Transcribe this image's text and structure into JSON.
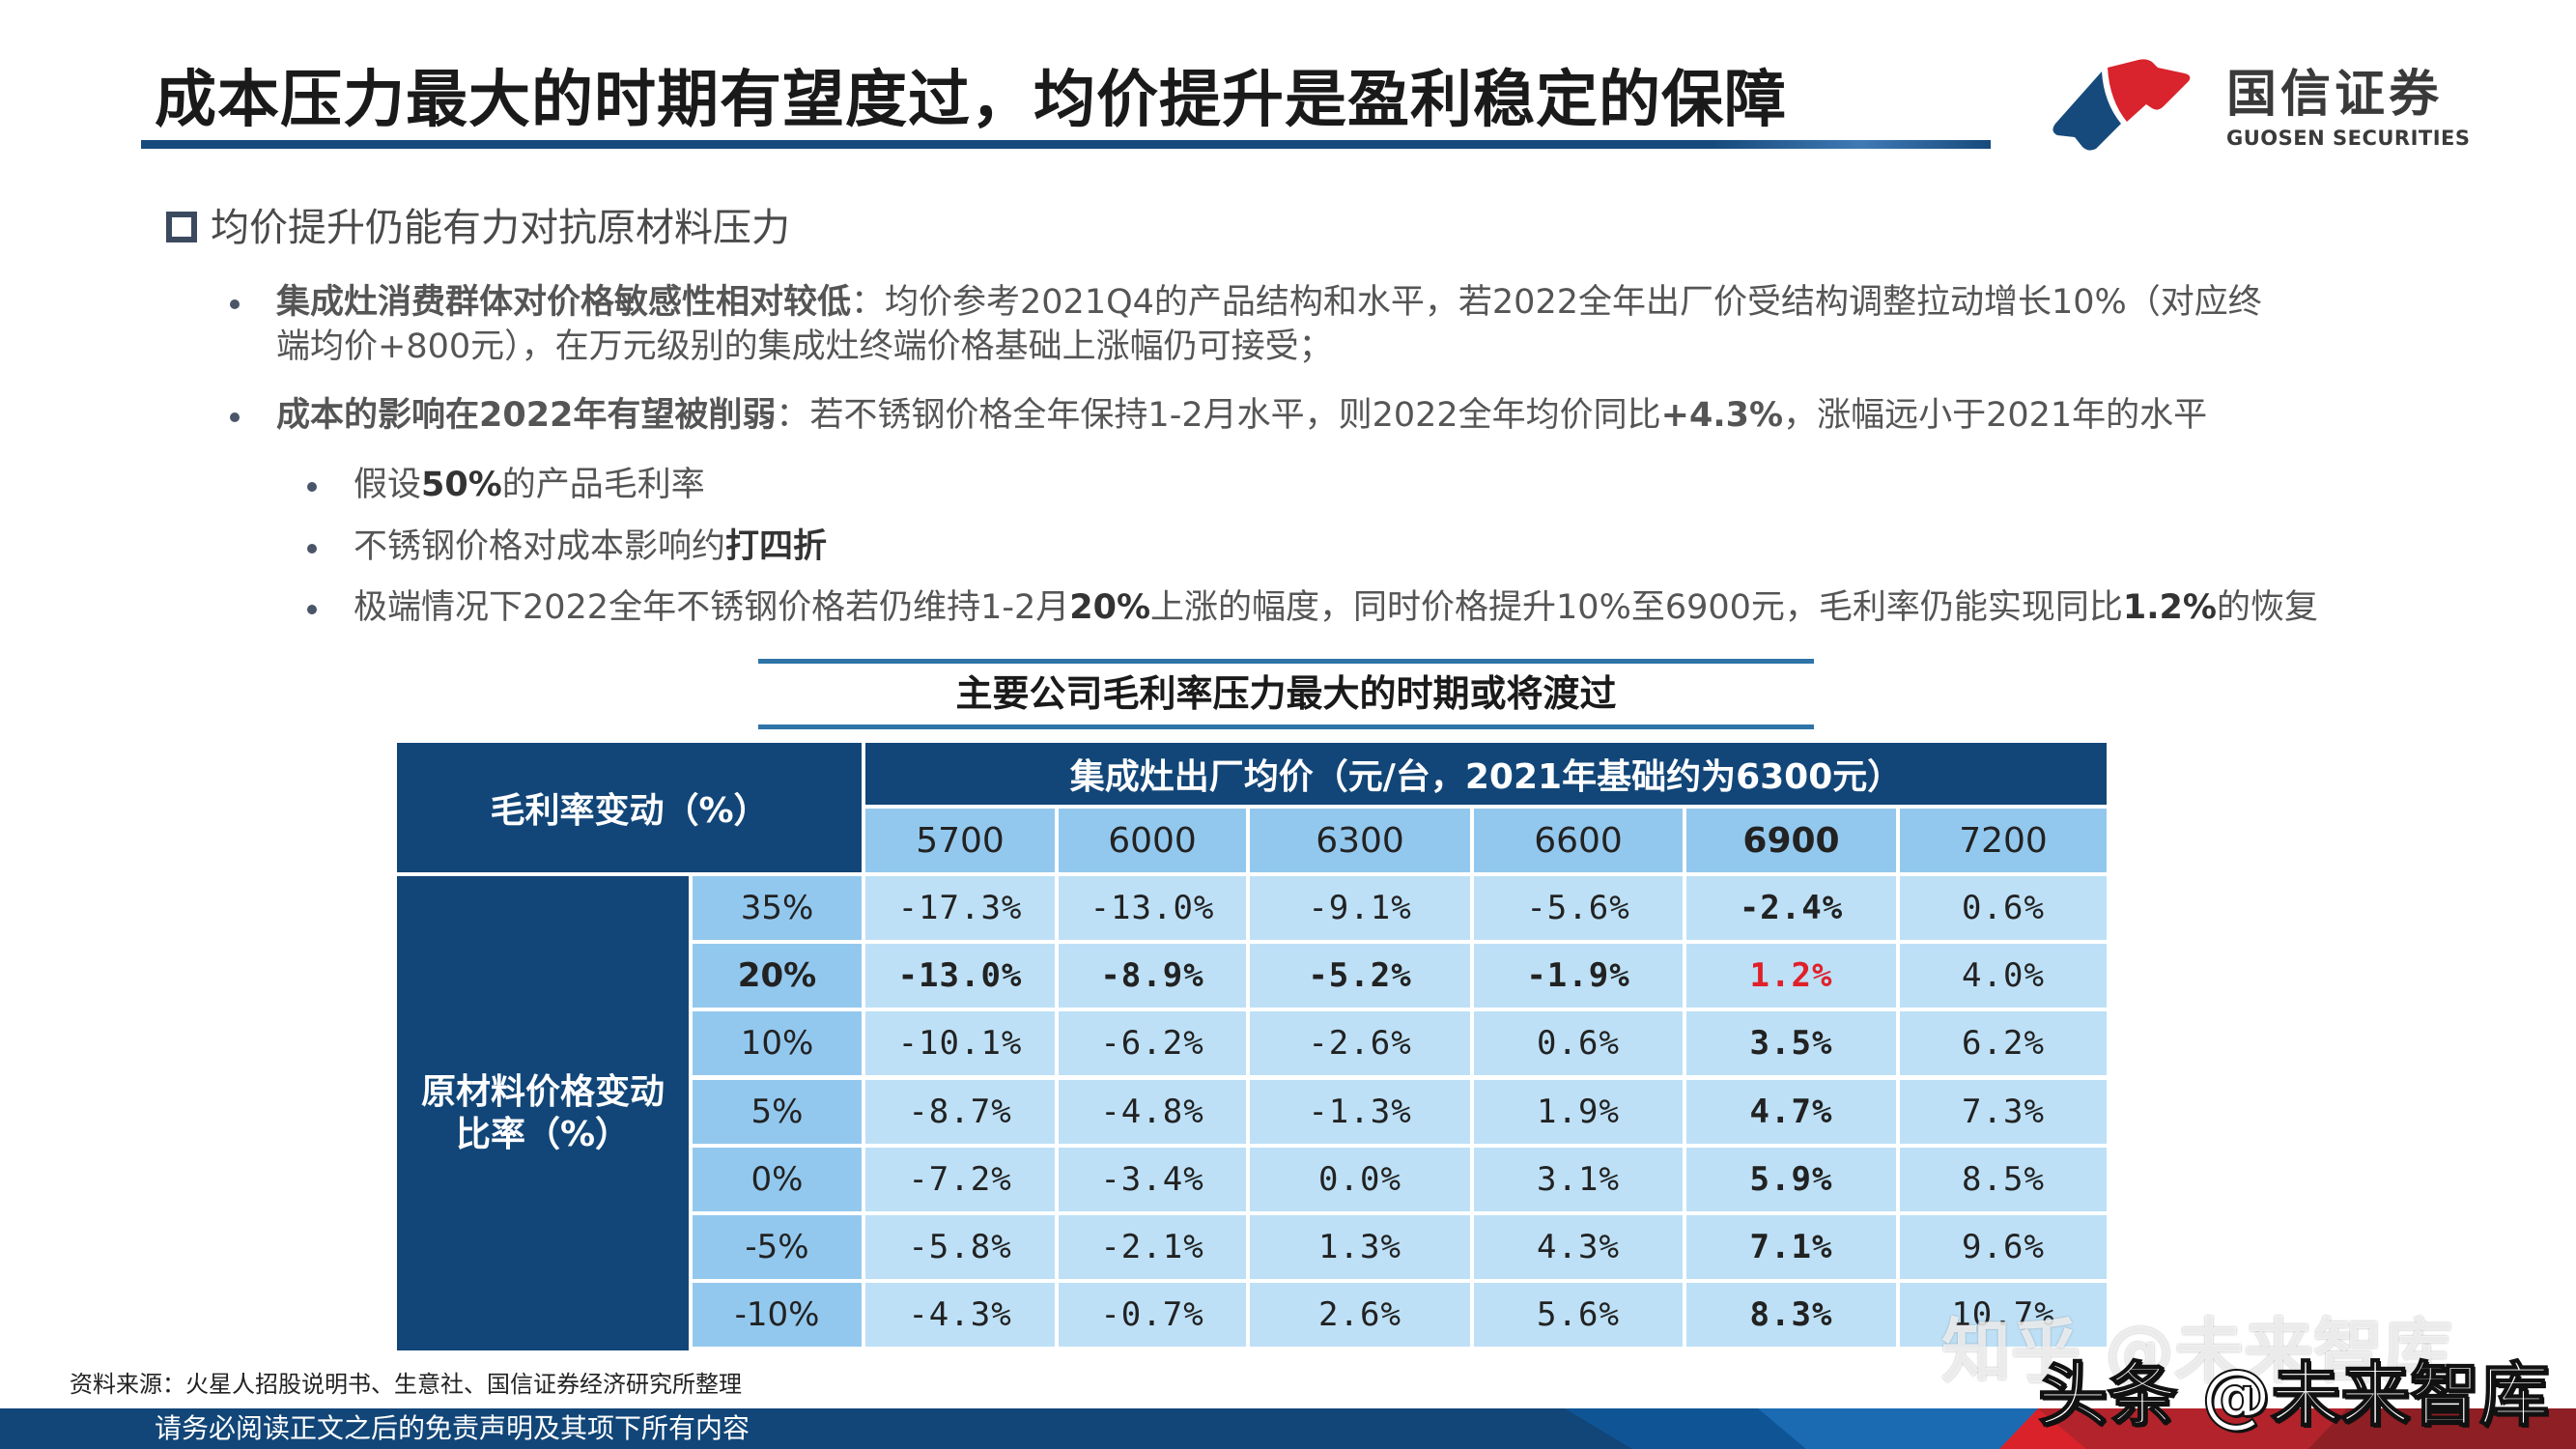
{
  "header": {
    "title": "成本压力最大的时期有望度过，均价提升是盈利稳定的保障",
    "logo": {
      "name_cn": "国信证券",
      "name_en": "GUOSEN SECURITIES",
      "colors": {
        "blue": "#174a7c",
        "red": "#d9232d"
      }
    }
  },
  "section": {
    "heading": "均价提升仍能有力对抗原材料压力",
    "bullets": [
      {
        "bold": "集成灶消费群体对价格敏感性相对较低",
        "text_line1": "：均价参考2021Q4的产品结构和水平，若2022全年出厂价受结构调整拉动增长10%（对应终",
        "text_line2": "端均价+800元），在万元级别的集成灶终端价格基础上涨幅仍可接受；"
      },
      {
        "bold": "成本的影响在2022年有望被削弱",
        "text": "：若不锈钢价格全年保持1-2月水平，则2022全年均价同比",
        "bold2": "+4.3%",
        "text2": "，涨幅远小于2021年的水平"
      }
    ],
    "sub_bullets": [
      {
        "pre": "假设",
        "bold": "50%",
        "post": "的产品毛利率"
      },
      {
        "pre": "不锈钢价格对成本影响约",
        "bold": "打四折",
        "post": ""
      },
      {
        "pre": "极端情况下2022全年不锈钢价格若仍维持1-2月",
        "bold": "20%",
        "mid": "上涨的幅度，同时价格提升10%至6900元，毛利率仍能实现同比",
        "bold2": "1.2%",
        "post": "的恢复"
      }
    ]
  },
  "table": {
    "title": "主要公司毛利率压力最大的时期或将渡过",
    "corner_header": "毛利率变动（%）",
    "column_group_header": "集成灶出厂均价（元/台，2021年基础约为6300元）",
    "row_group_header_line1": "原材料价格变动",
    "row_group_header_line2": "比率（%）",
    "columns": [
      "5700",
      "6000",
      "6300",
      "6600",
      "6900",
      "7200"
    ],
    "rows": [
      {
        "label": "35%",
        "values": [
          "-17.3%",
          "-13.0%",
          "-9.1%",
          "-5.6%",
          "-2.4%",
          "0.6%"
        ]
      },
      {
        "label": "20%",
        "values": [
          "-13.0%",
          "-8.9%",
          "-5.2%",
          "-1.9%",
          "1.2%",
          "4.0%"
        ]
      },
      {
        "label": "10%",
        "values": [
          "-10.1%",
          "-6.2%",
          "-2.6%",
          "0.6%",
          "3.5%",
          "6.2%"
        ]
      },
      {
        "label": "5%",
        "values": [
          "-8.7%",
          "-4.8%",
          "-1.3%",
          "1.9%",
          "4.7%",
          "7.3%"
        ]
      },
      {
        "label": "0%",
        "values": [
          "-7.2%",
          "-3.4%",
          "0.0%",
          "3.1%",
          "5.9%",
          "8.5%"
        ]
      },
      {
        "label": "-5%",
        "values": [
          "-5.8%",
          "-2.1%",
          "1.3%",
          "4.3%",
          "7.1%",
          "9.6%"
        ]
      },
      {
        "label": "-10%",
        "values": [
          "-4.3%",
          "-0.7%",
          "2.6%",
          "5.6%",
          "8.3%",
          "10.7%"
        ]
      }
    ],
    "highlight": {
      "row": 1,
      "col": 4,
      "color": "#e0202a"
    },
    "colors": {
      "dark_header": "#124678",
      "light_header": "#93c8ee",
      "cell": "#bde0f6"
    }
  },
  "source": "资料来源：火星人招股说明书、生意社、国信证券经济研究所整理",
  "footer": {
    "disclaimer": "请务必阅读正文之后的免责声明及其项下所有内容"
  },
  "watermarks": [
    "知乎 @未来智库",
    "头条 @未来智库"
  ]
}
